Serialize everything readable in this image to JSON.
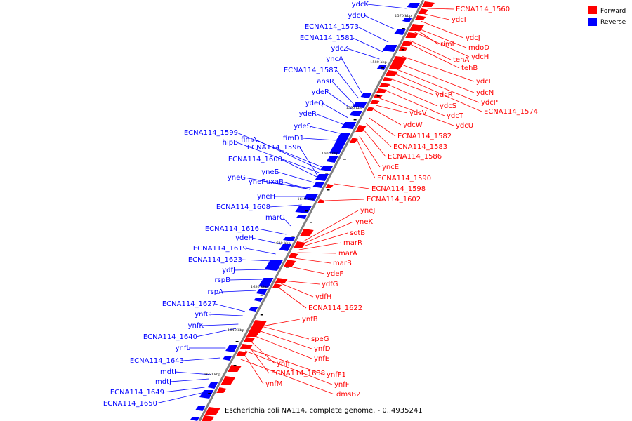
{
  "legend": {
    "forward": "Forward",
    "reverse": "Reverse"
  },
  "colors": {
    "forward": "#ff0000",
    "reverse": "#0000ff",
    "axis": "#808080"
  },
  "footer": "Escherichia coli NA114, complete genome. - 0..4935241",
  "ticks": [
    "1570 kbp",
    "1580 kbp",
    "1590 kbp",
    "1600 kbp",
    "1610 kbp",
    "1620 kbp",
    "1630 kbp",
    "1640 kbp",
    "1650 kbp"
  ],
  "left_labels": [
    "ydcK",
    "ydcO",
    "ECNA114_1573",
    "ECNA114_1581",
    "ydcZ",
    "yncA",
    "ECNA114_1587",
    "ansP",
    "ydeP",
    "ydeQ",
    "ydeR",
    "ydeS",
    "fimD1",
    "ECNA114_1599",
    "hipB",
    "fimA",
    "ECNA114_1596",
    "ECNA114_1600",
    "yneE",
    "yneG",
    "yneF",
    "uxaB",
    "yneH",
    "ECNA114_1608",
    "marC",
    "ECNA114_1616",
    "ydeH",
    "ECNA114_1619",
    "ECNA114_1623",
    "ydfJ",
    "rspB",
    "rspA",
    "ECNA114_1627",
    "ynfC",
    "ynfK",
    "ECNA114_1640",
    "ynfL",
    "ECNA114_1643",
    "mdtI",
    "mdtJ",
    "ECNA114_1649",
    "ECNA114_1650"
  ],
  "right_labels": [
    "ECNA114_1560",
    "ydcI",
    "ydcJ",
    "rimL",
    "mdoD",
    "ydcH",
    "tehA",
    "tehB",
    "ydcL",
    "ydcR",
    "ydcN",
    "ydcP",
    "ydcS",
    "ECNA114_1574",
    "ydcV",
    "ydcT",
    "ydcW",
    "ydcU",
    "ECNA114_1582",
    "ECNA114_1583",
    "ECNA114_1586",
    "yncE",
    "ECNA114_1590",
    "ECNA114_1598",
    "ECNA114_1602",
    "yneJ",
    "yneK",
    "sotB",
    "marR",
    "marA",
    "marB",
    "ydeF",
    "ydfG",
    "ydfH",
    "ECNA114_1622",
    "ynfB",
    "speG",
    "ynfD",
    "ynfE",
    "ynfI",
    "ECNA114_1638",
    "ynfF1",
    "ynfF",
    "ynfM",
    "dmsB2"
  ]
}
